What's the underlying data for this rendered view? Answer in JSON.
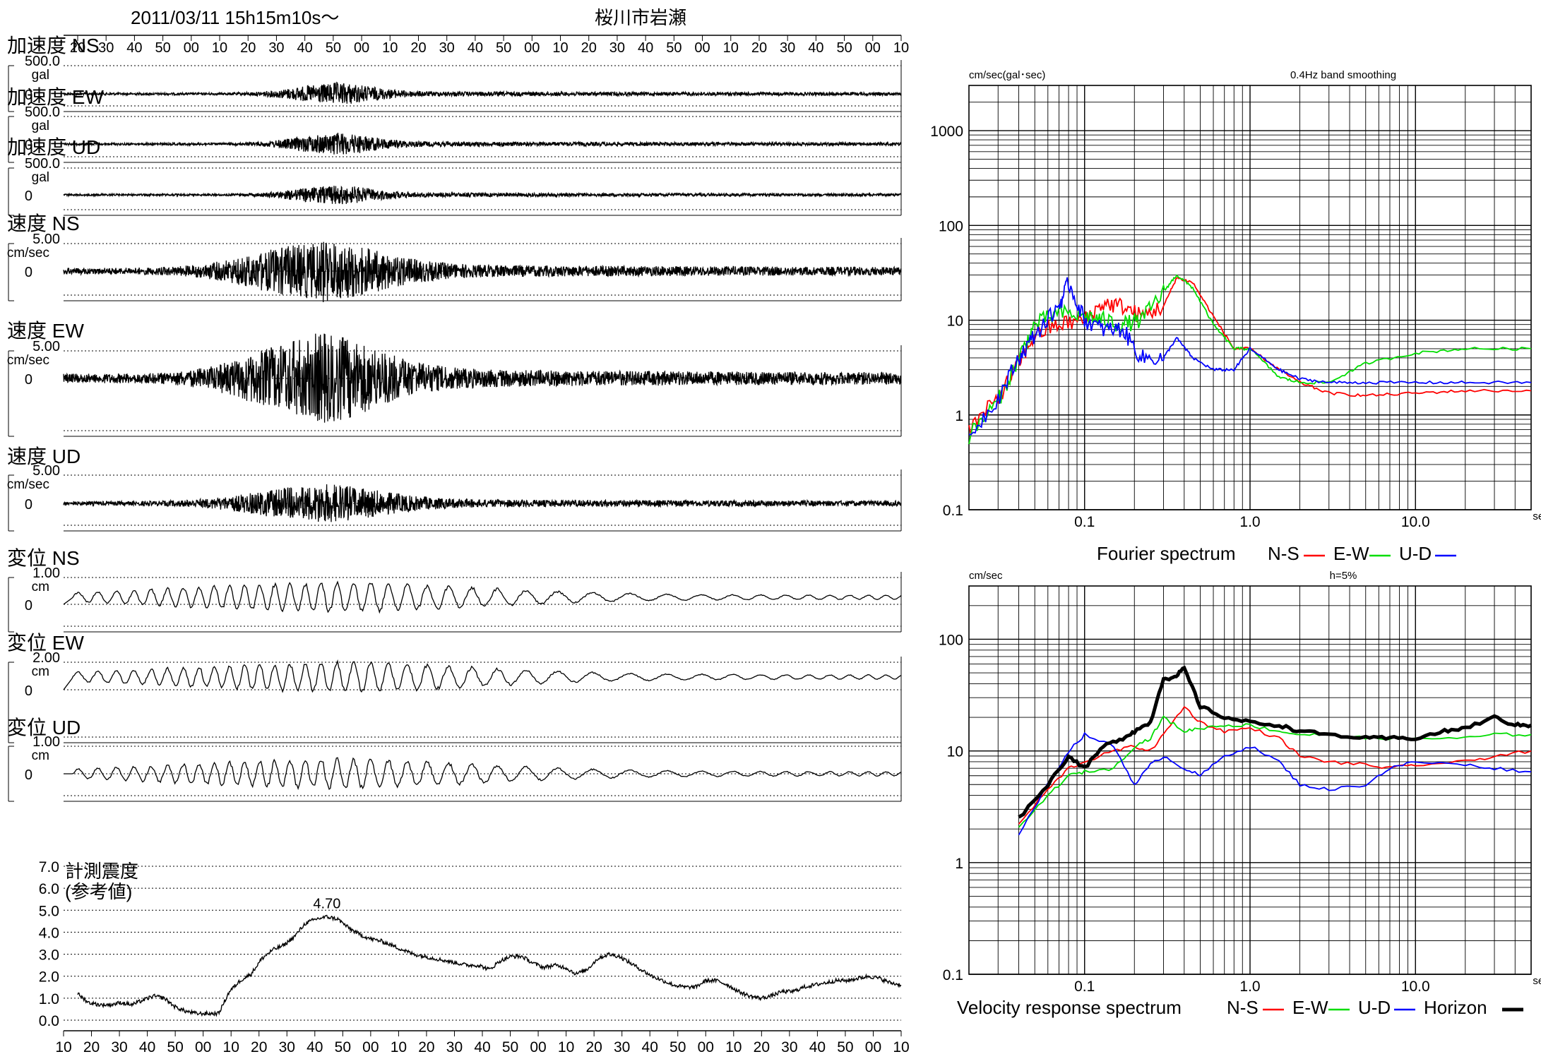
{
  "header": {
    "datetime": "2011/03/11  15h15m10s～",
    "station": "桜川市岩瀬"
  },
  "time_axis": {
    "top_labels": [
      "20",
      "30",
      "40",
      "50",
      "00",
      "10",
      "20",
      "30",
      "40",
      "50",
      "00",
      "10",
      "20",
      "30",
      "40",
      "50",
      "00",
      "10",
      "20",
      "30",
      "40",
      "50",
      "00",
      "10",
      "20",
      "30",
      "40",
      "50",
      "00",
      "10"
    ],
    "bottom_labels": [
      "10",
      "20",
      "30",
      "40",
      "50",
      "00",
      "10",
      "20",
      "30",
      "40",
      "50",
      "00",
      "10",
      "20",
      "30",
      "40",
      "50",
      "00",
      "10",
      "20",
      "30",
      "40",
      "50",
      "00",
      "10",
      "20",
      "30",
      "40",
      "50",
      "00",
      "10"
    ]
  },
  "waveforms": [
    {
      "id": "acc-ns",
      "title": "加速度 NS",
      "max": "500.0",
      "unit": "gal",
      "zero": "0",
      "amp": 14,
      "peak": 0.32,
      "decay": 0.06,
      "lowfreq": false,
      "offset": 0
    },
    {
      "id": "acc-ew",
      "title": "加速度 EW",
      "max": "500.0",
      "unit": "gal",
      "zero": "0",
      "amp": 14,
      "peak": 0.32,
      "decay": 0.06,
      "lowfreq": false,
      "offset": 0
    },
    {
      "id": "acc-ud",
      "title": "加速度 UD",
      "max": "500.0",
      "unit": "gal",
      "zero": "0",
      "amp": 12,
      "peak": 0.32,
      "decay": 0.06,
      "lowfreq": false,
      "offset": 0
    },
    {
      "id": "vel-ns",
      "title": "速度 NS",
      "max": "5.00",
      "unit": "cm/sec",
      "zero": "0",
      "amp": 38,
      "peak": 0.3,
      "decay": 0.1,
      "lowfreq": false,
      "offset": 0
    },
    {
      "id": "vel-ew",
      "title": "速度 EW",
      "max": "5.00",
      "unit": "cm/sec",
      "zero": "0",
      "amp": 55,
      "peak": 0.3,
      "decay": 0.1,
      "lowfreq": false,
      "offset": 0
    },
    {
      "id": "vel-ud",
      "title": "速度 UD",
      "max": "5.00",
      "unit": "cm/sec",
      "zero": "0",
      "amp": 24,
      "peak": 0.3,
      "decay": 0.1,
      "lowfreq": false,
      "offset": 0
    },
    {
      "id": "dis-ns",
      "title": "変位 NS",
      "max": "1.00",
      "unit": "cm",
      "zero": "0",
      "amp": 30,
      "peak": 0.3,
      "decay": 0.25,
      "lowfreq": true,
      "offset": -10
    },
    {
      "id": "dis-ew",
      "title": "変位 EW",
      "max": "2.00",
      "unit": "cm",
      "zero": "0",
      "amp": 30,
      "peak": 0.3,
      "decay": 0.25,
      "lowfreq": true,
      "offset": -18
    },
    {
      "id": "dis-ud",
      "title": "変位 UD",
      "max": "1.00",
      "unit": "cm",
      "zero": "0",
      "amp": 30,
      "peak": 0.3,
      "decay": 0.25,
      "lowfreq": true,
      "offset": 0
    }
  ],
  "intensity": {
    "title_line1": "計測震度",
    "title_line2": "(参考値)",
    "peak_label": "4.70",
    "y_labels": [
      "7.0",
      "6.0",
      "5.0",
      "4.0",
      "3.0",
      "2.0",
      "1.0",
      "0.0"
    ],
    "values": [
      1.2,
      0.8,
      0.7,
      0.7,
      0.8,
      0.7,
      0.9,
      1.1,
      1.0,
      0.6,
      0.4,
      0.3,
      0.3,
      0.3,
      1.3,
      1.8,
      2.1,
      2.8,
      3.2,
      3.4,
      3.8,
      4.4,
      4.6,
      4.7,
      4.6,
      4.2,
      3.9,
      3.7,
      3.6,
      3.4,
      3.2,
      3.0,
      2.9,
      2.8,
      2.7,
      2.6,
      2.5,
      2.5,
      2.3,
      2.7,
      2.9,
      2.9,
      2.6,
      2.4,
      2.5,
      2.4,
      2.1,
      2.3,
      2.8,
      3.0,
      2.9,
      2.6,
      2.3,
      2.0,
      1.8,
      1.6,
      1.5,
      1.5,
      1.8,
      1.8,
      1.6,
      1.3,
      1.1,
      1.0,
      1.1,
      1.3,
      1.3,
      1.5,
      1.6,
      1.7,
      1.8,
      1.8,
      1.9,
      2.0,
      1.9,
      1.7,
      1.6
    ]
  },
  "chart_data": [
    {
      "type": "line",
      "title": "0.4Hz band smoothing",
      "ylabel": "cm/sec(gal･sec)",
      "xlabel": "sec",
      "caption": "Fourier spectrum",
      "x_scale": "log",
      "y_scale": "log",
      "xlim": [
        0.02,
        50
      ],
      "ylim": [
        0.1,
        3000
      ],
      "x_tick_labels": [
        "0.1",
        "1.0",
        "10.0"
      ],
      "y_tick_labels": [
        "1000",
        "100",
        "10",
        "1",
        "0.1"
      ],
      "legend": [
        "N-S",
        "E-W",
        "U-D"
      ],
      "series": [
        {
          "name": "N-S",
          "color": "#ff0000",
          "x": [
            0.02,
            0.03,
            0.04,
            0.05,
            0.07,
            0.1,
            0.13,
            0.17,
            0.22,
            0.3,
            0.36,
            0.45,
            0.6,
            0.8,
            1.0,
            1.5,
            2.0,
            3.0,
            5.0,
            10.0,
            20.0,
            50.0
          ],
          "y": [
            0.7,
            1.5,
            3.5,
            7,
            9,
            10,
            15,
            14,
            11,
            14,
            28,
            25,
            11,
            5,
            5,
            3,
            2.2,
            1.7,
            1.6,
            1.7,
            1.8,
            1.8
          ]
        },
        {
          "name": "E-W",
          "color": "#00dd00",
          "x": [
            0.02,
            0.03,
            0.04,
            0.05,
            0.07,
            0.1,
            0.13,
            0.17,
            0.22,
            0.3,
            0.36,
            0.45,
            0.6,
            0.8,
            1.0,
            1.5,
            2.0,
            3.0,
            5.0,
            10.0,
            20.0,
            50.0
          ],
          "y": [
            0.6,
            1.4,
            4,
            9,
            12,
            11,
            10,
            9,
            10,
            20,
            30,
            22,
            9,
            5,
            5,
            2.5,
            2.2,
            2.2,
            3.5,
            4.5,
            5.0,
            5.0
          ]
        },
        {
          "name": "U-D",
          "color": "#0000ff",
          "x": [
            0.02,
            0.03,
            0.04,
            0.05,
            0.07,
            0.08,
            0.1,
            0.13,
            0.17,
            0.22,
            0.3,
            0.36,
            0.45,
            0.6,
            0.8,
            1.0,
            1.5,
            2.0,
            3.0,
            5.0,
            10.0,
            20.0,
            50.0
          ],
          "y": [
            0.6,
            1.5,
            4,
            7,
            14,
            25,
            10,
            8,
            8,
            4,
            4,
            6.5,
            4,
            3,
            3,
            5,
            3,
            2.4,
            2.2,
            2.2,
            2.2,
            2.2,
            2.2
          ]
        }
      ]
    },
    {
      "type": "line",
      "title": "h=5%",
      "ylabel": "cm/sec",
      "xlabel": "sec",
      "caption": "Velocity response spectrum",
      "x_scale": "log",
      "y_scale": "log",
      "xlim": [
        0.02,
        50
      ],
      "ylim": [
        0.1,
        300
      ],
      "x_tick_labels": [
        "0.1",
        "1.0",
        "10.0"
      ],
      "y_tick_labels": [
        "100",
        "10",
        "1",
        "0.1"
      ],
      "legend": [
        "N-S",
        "E-W",
        "U-D",
        "Horizon"
      ],
      "series": [
        {
          "name": "N-S",
          "color": "#ff0000",
          "x": [
            0.04,
            0.06,
            0.08,
            0.1,
            0.15,
            0.2,
            0.25,
            0.3,
            0.4,
            0.5,
            0.7,
            1.0,
            1.5,
            2.0,
            3.0,
            5.0,
            7.0,
            10.0,
            20.0,
            30.0,
            50.0
          ],
          "y": [
            2.2,
            4.5,
            7,
            8,
            10,
            11,
            10,
            14,
            25,
            18,
            15,
            16,
            13,
            9,
            8,
            7.5,
            7,
            7.5,
            8,
            9,
            10
          ]
        },
        {
          "name": "E-W",
          "color": "#00dd00",
          "x": [
            0.04,
            0.06,
            0.08,
            0.1,
            0.15,
            0.2,
            0.25,
            0.3,
            0.4,
            0.5,
            0.7,
            1.0,
            1.5,
            2.0,
            3.0,
            5.0,
            7.0,
            10.0,
            20.0,
            30.0,
            50.0
          ],
          "y": [
            2,
            4,
            6,
            6.5,
            7,
            11,
            13,
            20,
            15,
            16,
            17,
            17,
            15,
            14,
            14,
            13,
            13,
            13,
            13,
            14,
            14
          ]
        },
        {
          "name": "U-D",
          "color": "#0000ff",
          "x": [
            0.04,
            0.06,
            0.08,
            0.1,
            0.15,
            0.2,
            0.25,
            0.3,
            0.4,
            0.5,
            0.7,
            1.0,
            1.5,
            2.0,
            3.0,
            5.0,
            7.0,
            10.0,
            20.0,
            30.0,
            50.0
          ],
          "y": [
            1.8,
            5,
            10,
            14,
            11,
            5,
            7.5,
            9,
            7,
            6,
            9,
            11,
            8,
            5,
            4.5,
            5,
            7,
            8,
            7.5,
            7,
            6.5
          ]
        },
        {
          "name": "Horizon",
          "color": "#000000",
          "x": [
            0.04,
            0.06,
            0.08,
            0.1,
            0.13,
            0.17,
            0.2,
            0.25,
            0.3,
            0.35,
            0.4,
            0.5,
            0.7,
            1.0,
            1.5,
            2.0,
            3.0,
            5.0,
            7.0,
            10.0,
            15.0,
            20.0,
            30.0,
            40.0,
            50.0
          ],
          "y": [
            2.5,
            5,
            9,
            7,
            11,
            13,
            15,
            18,
            45,
            45,
            55,
            25,
            20,
            18,
            17,
            15,
            14,
            13,
            13,
            13,
            15,
            16,
            20,
            17,
            17
          ]
        }
      ]
    }
  ]
}
